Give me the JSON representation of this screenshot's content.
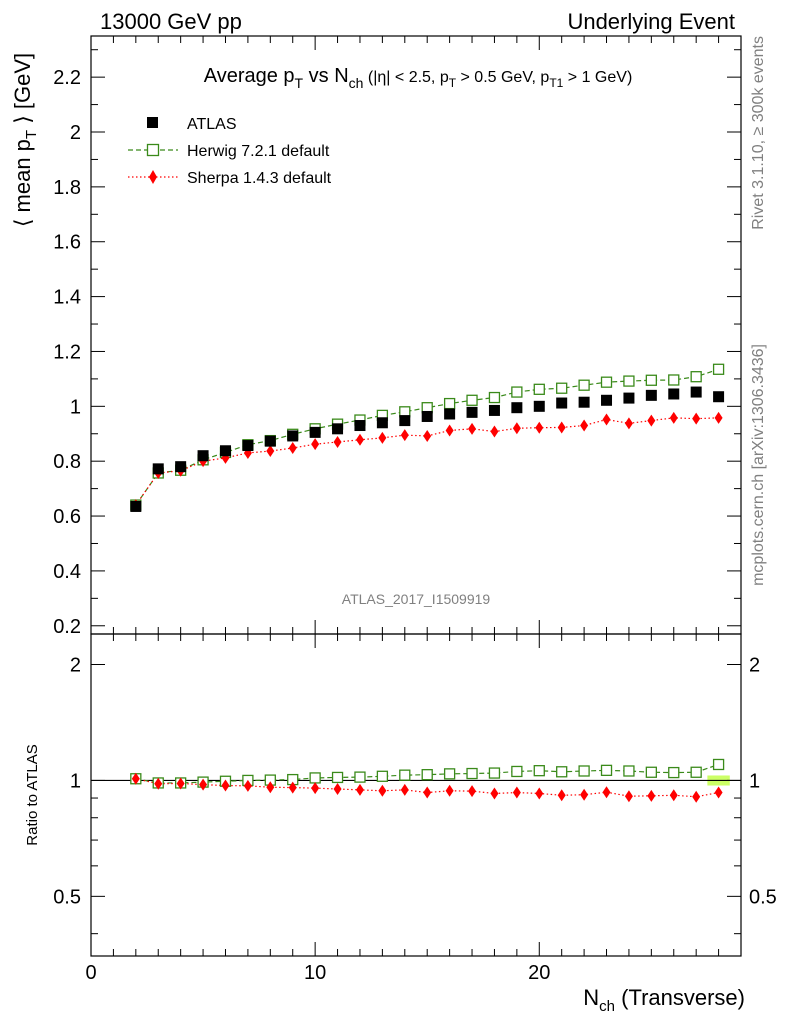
{
  "header": {
    "left": "13000 GeV pp",
    "right": "Underlying Event"
  },
  "side": {
    "rivet": "Rivet 3.1.10, ≥ 300k events",
    "mcplots": "mcplots.cern.ch [arXiv:1306.3436]"
  },
  "main_panel": {
    "title": {
      "prefix": "Average p",
      "sub_t": "T",
      "vs": " vs N",
      "sub_ch": "ch",
      "cond_open": " (|η| < 2.5, p",
      "cond_pt": " > 0.5 GeV, p",
      "cond_t1": "T1",
      "cond_close": " > 1 GeV)"
    },
    "ylabel": {
      "open": "⟨ mean p",
      "sub": "T",
      "close": " ⟩ [GeV]"
    },
    "watermark": "ATLAS_2017_I1509919"
  },
  "ratio_panel": {
    "ylabel": "Ratio to ATLAS"
  },
  "xaxis": {
    "label_main": "N",
    "label_sub": "ch",
    "label_rest": " (Transverse)"
  },
  "colors": {
    "data": "#000000",
    "herwig": "#3a8a1a",
    "sherpa": "#ff0000",
    "band": "#ccff66"
  },
  "chart_data": [
    {
      "type": "scatter",
      "xlim": [
        0,
        29
      ],
      "ylim": [
        0.17,
        2.35
      ],
      "yticks": [
        "0.2",
        "0.4",
        "0.6",
        "0.8",
        "1",
        "1.2",
        "1.4",
        "1.6",
        "1.8",
        "2",
        "2.2"
      ],
      "x": [
        2,
        3,
        4,
        5,
        6,
        7,
        8,
        9,
        10,
        11,
        12,
        13,
        14,
        15,
        16,
        17,
        18,
        19,
        20,
        21,
        22,
        23,
        24,
        25,
        26,
        27,
        28
      ],
      "legend_placement": "top-left",
      "series": [
        {
          "name": "ATLAS",
          "marker": "filled-square",
          "values": [
            0.635,
            0.772,
            0.78,
            0.82,
            0.838,
            0.857,
            0.873,
            0.892,
            0.905,
            0.918,
            0.93,
            0.94,
            0.948,
            0.963,
            0.972,
            0.978,
            0.985,
            0.995,
            1.0,
            1.012,
            1.015,
            1.022,
            1.03,
            1.04,
            1.045,
            1.052,
            1.035
          ]
        },
        {
          "name": "Herwig 7.2.1 default",
          "marker": "open-square",
          "line": "dashed",
          "values": [
            0.64,
            0.757,
            0.767,
            0.805,
            0.832,
            0.86,
            0.875,
            0.898,
            0.918,
            0.935,
            0.95,
            0.967,
            0.98,
            0.995,
            1.01,
            1.022,
            1.032,
            1.052,
            1.062,
            1.066,
            1.077,
            1.088,
            1.092,
            1.095,
            1.096,
            1.108,
            1.135
          ]
        },
        {
          "name": "Sherpa 1.4.3 default",
          "marker": "filled-diamond",
          "line": "dotted",
          "values": [
            0.64,
            0.757,
            0.765,
            0.8,
            0.812,
            0.83,
            0.837,
            0.848,
            0.862,
            0.87,
            0.878,
            0.885,
            0.895,
            0.892,
            0.912,
            0.918,
            0.908,
            0.92,
            0.922,
            0.923,
            0.93,
            0.952,
            0.938,
            0.948,
            0.958,
            0.955,
            0.958
          ]
        }
      ]
    },
    {
      "type": "scatter",
      "xlim": [
        0,
        29
      ],
      "ylim": [
        0.35,
        2.4
      ],
      "yscale": "log",
      "yticks": [
        "0.5",
        "1",
        "2"
      ],
      "xticks": [
        "0",
        "10",
        "20"
      ],
      "reference_line": 1,
      "x": [
        2,
        3,
        4,
        5,
        6,
        7,
        8,
        9,
        10,
        11,
        12,
        13,
        14,
        15,
        16,
        17,
        18,
        19,
        20,
        21,
        22,
        23,
        24,
        25,
        26,
        27,
        28
      ],
      "series": [
        {
          "name": "Herwig 7.2.1 default",
          "values": [
            1.01,
            0.985,
            0.985,
            0.99,
            0.995,
            1.0,
            1.002,
            1.005,
            1.015,
            1.018,
            1.02,
            1.025,
            1.032,
            1.035,
            1.04,
            1.042,
            1.045,
            1.055,
            1.06,
            1.053,
            1.058,
            1.062,
            1.058,
            1.05,
            1.048,
            1.05,
            1.1
          ]
        },
        {
          "name": "Sherpa 1.4.3 default",
          "values": [
            1.01,
            0.98,
            0.982,
            0.975,
            0.97,
            0.968,
            0.96,
            0.958,
            0.955,
            0.95,
            0.945,
            0.94,
            0.945,
            0.93,
            0.94,
            0.938,
            0.925,
            0.93,
            0.925,
            0.915,
            0.918,
            0.932,
            0.91,
            0.912,
            0.915,
            0.907,
            0.93
          ]
        }
      ]
    }
  ]
}
